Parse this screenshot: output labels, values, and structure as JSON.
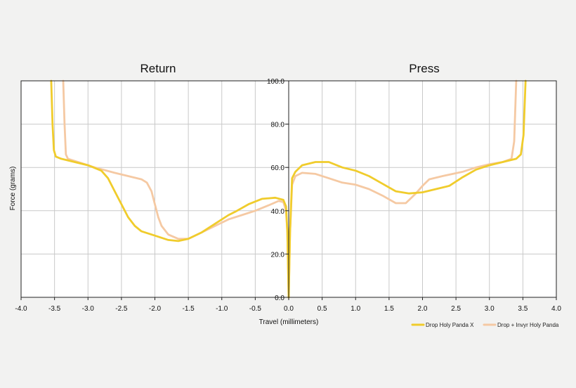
{
  "colors": {
    "background": "#f2f2f1",
    "plot_background": "#ffffff",
    "grid": "#c9c9c9",
    "axis": "#222222",
    "series_1": "#f0cc2c",
    "series_2": "#f5c9a3"
  },
  "chart_data": {
    "type": "line",
    "panels": [
      {
        "title": "Return",
        "xlim": [
          -4.0,
          0.0
        ]
      },
      {
        "title": "Press",
        "xlim": [
          0.0,
          4.0
        ]
      }
    ],
    "xlabel": "Travel (millimeters)",
    "ylabel": "Force (grams)",
    "ylim": [
      0,
      100
    ],
    "x_tick_labels": [
      "-4.0",
      "-3.5",
      "-3.0",
      "-2.5",
      "-2.0",
      "-1.5",
      "-1.0",
      "-0.5",
      "0.0",
      "0.5",
      "1.0",
      "1.5",
      "2.0",
      "2.5",
      "3.0",
      "3.5",
      "4.0"
    ],
    "x_tick_values": [
      -4.0,
      -3.5,
      -3.0,
      -2.5,
      -2.0,
      -1.5,
      -1.0,
      -0.5,
      0.0,
      0.5,
      1.0,
      1.5,
      2.0,
      2.5,
      3.0,
      3.5,
      4.0
    ],
    "y_tick_labels": [
      "0.0",
      "20.0",
      "40.0",
      "60.0",
      "80.0",
      "100.0"
    ],
    "y_tick_values": [
      0,
      20,
      40,
      60,
      80,
      100
    ],
    "grid": true,
    "legend_position": "bottom-right",
    "series": [
      {
        "name": "Drop Holy Panda X",
        "return": [
          [
            -3.55,
            100
          ],
          [
            -3.53,
            80
          ],
          [
            -3.51,
            68
          ],
          [
            -3.48,
            65
          ],
          [
            -3.4,
            64
          ],
          [
            -3.2,
            62.5
          ],
          [
            -3.0,
            61
          ],
          [
            -2.8,
            58.5
          ],
          [
            -2.7,
            55
          ],
          [
            -2.6,
            49
          ],
          [
            -2.5,
            43
          ],
          [
            -2.4,
            37
          ],
          [
            -2.3,
            33
          ],
          [
            -2.2,
            30.5
          ],
          [
            -2.0,
            28.5
          ],
          [
            -1.8,
            26.5
          ],
          [
            -1.65,
            26
          ],
          [
            -1.5,
            27
          ],
          [
            -1.3,
            30
          ],
          [
            -1.1,
            34
          ],
          [
            -0.9,
            38
          ],
          [
            -0.8,
            39.5
          ],
          [
            -0.6,
            43
          ],
          [
            -0.4,
            45.5
          ],
          [
            -0.2,
            46
          ],
          [
            -0.08,
            45
          ],
          [
            -0.04,
            42
          ],
          [
            -0.02,
            30
          ],
          [
            0.0,
            0
          ]
        ],
        "press": [
          [
            0.0,
            0
          ],
          [
            0.02,
            30
          ],
          [
            0.05,
            55
          ],
          [
            0.1,
            58
          ],
          [
            0.2,
            61
          ],
          [
            0.4,
            62.5
          ],
          [
            0.6,
            62.5
          ],
          [
            0.8,
            60
          ],
          [
            1.0,
            58.5
          ],
          [
            1.2,
            56
          ],
          [
            1.4,
            52.5
          ],
          [
            1.6,
            49
          ],
          [
            1.8,
            48
          ],
          [
            2.0,
            48.5
          ],
          [
            2.2,
            50
          ],
          [
            2.4,
            51.5
          ],
          [
            2.6,
            55.5
          ],
          [
            2.8,
            59
          ],
          [
            3.0,
            61
          ],
          [
            3.2,
            62.5
          ],
          [
            3.4,
            64
          ],
          [
            3.47,
            66
          ],
          [
            3.51,
            75
          ],
          [
            3.54,
            100
          ]
        ]
      },
      {
        "name": "Drop + Invyr Holy Panda",
        "return": [
          [
            -3.37,
            100
          ],
          [
            -3.35,
            80
          ],
          [
            -3.33,
            66
          ],
          [
            -3.3,
            64
          ],
          [
            -3.1,
            62
          ],
          [
            -2.9,
            60
          ],
          [
            -2.6,
            57.5
          ],
          [
            -2.4,
            56
          ],
          [
            -2.2,
            54.5
          ],
          [
            -2.12,
            53
          ],
          [
            -2.05,
            49
          ],
          [
            -2.0,
            43
          ],
          [
            -1.95,
            37
          ],
          [
            -1.9,
            33
          ],
          [
            -1.8,
            29
          ],
          [
            -1.65,
            27
          ],
          [
            -1.5,
            27
          ],
          [
            -1.3,
            30
          ],
          [
            -1.1,
            33
          ],
          [
            -0.9,
            36
          ],
          [
            -0.7,
            38
          ],
          [
            -0.5,
            40
          ],
          [
            -0.3,
            42.5
          ],
          [
            -0.15,
            44.5
          ],
          [
            -0.08,
            44
          ],
          [
            -0.04,
            40
          ],
          [
            -0.02,
            30
          ],
          [
            0.0,
            0
          ]
        ],
        "press": [
          [
            0.0,
            0
          ],
          [
            0.02,
            30
          ],
          [
            0.05,
            52
          ],
          [
            0.1,
            56
          ],
          [
            0.2,
            57.5
          ],
          [
            0.4,
            57
          ],
          [
            0.6,
            55
          ],
          [
            0.8,
            53
          ],
          [
            1.0,
            52
          ],
          [
            1.2,
            50
          ],
          [
            1.4,
            47
          ],
          [
            1.6,
            43.5
          ],
          [
            1.75,
            43.5
          ],
          [
            1.9,
            48
          ],
          [
            2.0,
            51.5
          ],
          [
            2.1,
            54.5
          ],
          [
            2.3,
            56
          ],
          [
            2.6,
            58
          ],
          [
            2.8,
            60
          ],
          [
            3.0,
            61.5
          ],
          [
            3.2,
            62.5
          ],
          [
            3.33,
            64
          ],
          [
            3.37,
            72
          ],
          [
            3.4,
            100
          ]
        ]
      }
    ]
  }
}
